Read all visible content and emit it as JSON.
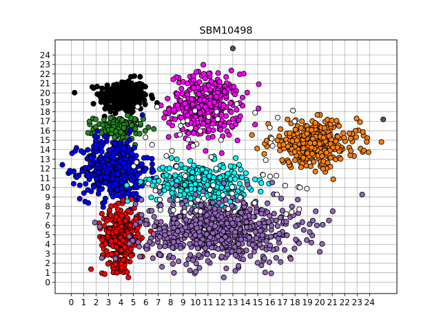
{
  "chart_data": {
    "type": "scatter",
    "title": "SBM10498",
    "xlabel": "",
    "ylabel": "",
    "xlim": [
      -1.3,
      26.2
    ],
    "ylim": [
      -1.2,
      25.6
    ],
    "xticks": [
      0,
      1,
      2,
      3,
      4,
      5,
      6,
      7,
      8,
      9,
      10,
      11,
      12,
      13,
      14,
      15,
      16,
      17,
      18,
      19,
      20,
      21,
      22,
      23,
      24
    ],
    "yticks": [
      0,
      1,
      2,
      3,
      4,
      5,
      6,
      7,
      8,
      9,
      10,
      11,
      12,
      13,
      14,
      15,
      16,
      17,
      18,
      19,
      20,
      21,
      22,
      23,
      24
    ],
    "grid": true,
    "legend": "none",
    "marker": {
      "shape": "circle",
      "edge_color": "#000000"
    },
    "clusters": [
      {
        "color": "#000000",
        "region": {
          "center": [
            4.2,
            19.6
          ],
          "spread": [
            1.3,
            1.2
          ]
        },
        "n": 260
      },
      {
        "color": "#ff00ff",
        "region": {
          "center": [
            10.8,
            18.6
          ],
          "spread": [
            1.9,
            2.3
          ]
        },
        "n": 340
      },
      {
        "color": "#228b22",
        "region": {
          "center": [
            3.8,
            16.3
          ],
          "spread": [
            1.3,
            0.8
          ]
        },
        "n": 140
      },
      {
        "color": "#0000ff",
        "region": {
          "center": [
            3.5,
            12.0
          ],
          "spread": [
            1.8,
            2.2
          ]
        },
        "n": 420
      },
      {
        "color": "#ff0000",
        "region": {
          "center": [
            4.0,
            4.7
          ],
          "spread": [
            1.0,
            2.1
          ]
        },
        "n": 300
      },
      {
        "color": "#00ffff",
        "region": {
          "center": [
            10.3,
            10.5
          ],
          "spread": [
            2.6,
            1.4
          ]
        },
        "n": 320
      },
      {
        "color": "#9467bd",
        "region": {
          "center": [
            12.0,
            5.5
          ],
          "spread": [
            4.2,
            2.3
          ]
        },
        "n": 700
      },
      {
        "color": "#ff7f0e",
        "region": {
          "center": [
            19.5,
            14.6
          ],
          "spread": [
            2.4,
            1.6
          ]
        },
        "n": 330
      },
      {
        "color": "#ffffff",
        "region": {
          "center": [
            12.0,
            13.0
          ],
          "spread": [
            7.0,
            6.0
          ]
        },
        "n": 70
      }
    ],
    "highlighted_points": [
      {
        "x": 13,
        "y": 24.7,
        "color": "#555555"
      },
      {
        "x": 25.1,
        "y": 17.2,
        "color": "#555555"
      }
    ]
  }
}
